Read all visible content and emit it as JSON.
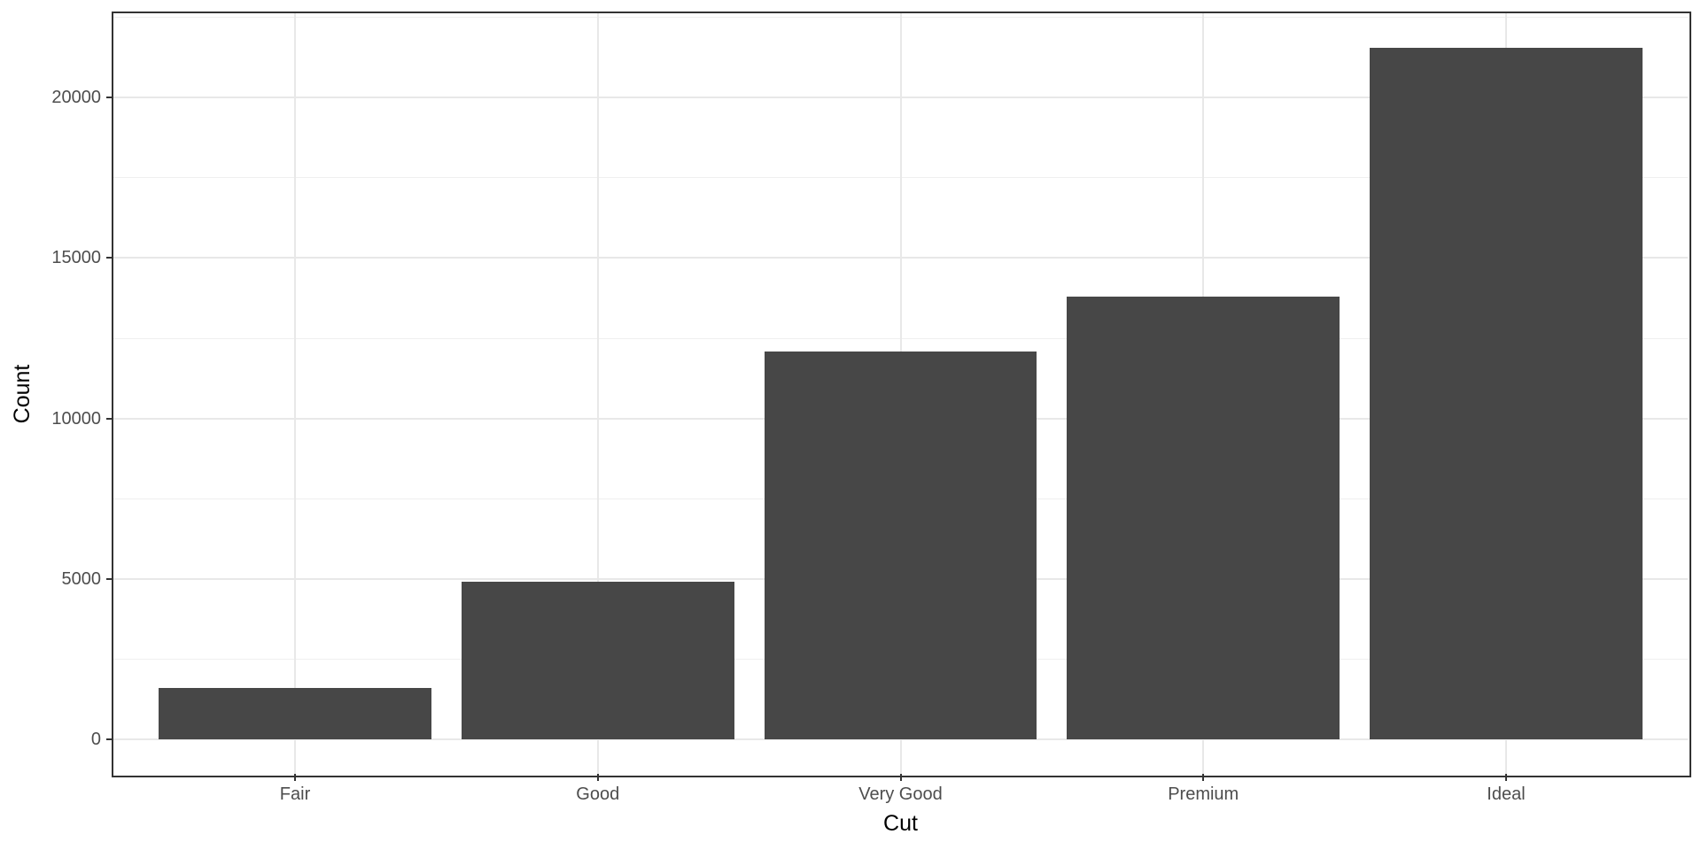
{
  "chart_data": {
    "type": "bar",
    "title": "",
    "xlabel": "Cut",
    "ylabel": "Count",
    "categories": [
      "Fair",
      "Good",
      "Very Good",
      "Premium",
      "Ideal"
    ],
    "values": [
      1610,
      4906,
      12082,
      13791,
      21551
    ],
    "y_major_ticks": [
      0,
      5000,
      10000,
      15000,
      20000
    ],
    "y_tick_labels": [
      "0",
      "5000",
      "10000",
      "15000",
      "20000"
    ],
    "y_minor_step": 2500,
    "ylim": [
      -1077.55,
      22628.55
    ],
    "bar_width_fraction": 0.9,
    "grid": true,
    "legend_position": "none",
    "colors": {
      "bar_fill": "#474747",
      "panel_background": "#ffffff",
      "panel_border": "#333333",
      "grid_major": "#e8e8e8",
      "grid_minor": "#efefef",
      "tick_mark": "#333333",
      "axis_text": "#4d4d4d",
      "axis_title": "#000000"
    }
  }
}
